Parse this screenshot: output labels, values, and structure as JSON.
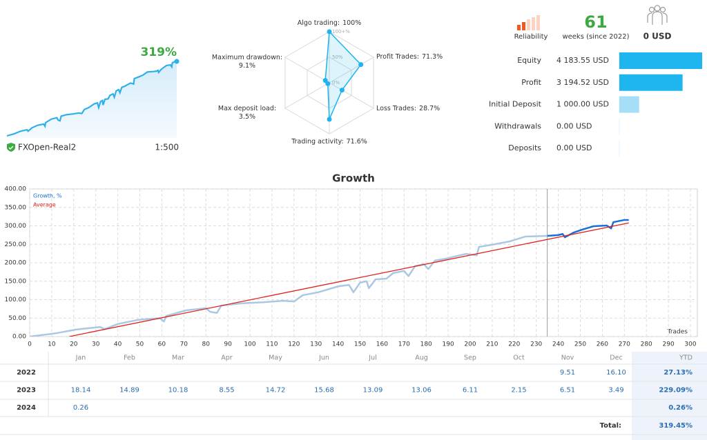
{
  "account": {
    "growth_label": "319%",
    "name": "FXOpen-Real2",
    "leverage": "1:500",
    "reliability_label": "Reliability",
    "weeks": "61",
    "weeks_label": "weeks (since 2022)",
    "subscribers_funds": "0 USD"
  },
  "chart_data": [
    {
      "type": "line",
      "title": "Growth",
      "x_label": "Trades",
      "xlim": [
        0,
        300
      ],
      "xticks": [
        0,
        10,
        20,
        30,
        40,
        50,
        60,
        70,
        80,
        90,
        100,
        110,
        120,
        130,
        140,
        150,
        160,
        170,
        180,
        190,
        200,
        210,
        220,
        230,
        240,
        250,
        260,
        270,
        280,
        290,
        300
      ],
      "ylim": [
        0,
        400
      ],
      "yticks": [
        {
          "value": 0,
          "label": "0.00"
        },
        {
          "value": 50,
          "label": "50.00"
        },
        {
          "value": 100,
          "label": "100.00"
        },
        {
          "value": 150,
          "label": "150.00"
        },
        {
          "value": 200,
          "label": "200.00"
        },
        {
          "value": 250,
          "label": "250.00"
        },
        {
          "value": 300,
          "label": "300.00"
        },
        {
          "value": 350,
          "label": "350.00"
        },
        {
          "value": 400,
          "label": "400.00"
        }
      ],
      "grid": true,
      "legend": "top-left",
      "split_x": 235,
      "series": [
        {
          "name": "Growth, %",
          "color": "#aac7e4",
          "recent_color": "#1a6fd6",
          "x": [
            0,
            12,
            21,
            32,
            34,
            40,
            49,
            59,
            61,
            62,
            71,
            80,
            82,
            85,
            87,
            96,
            106,
            115,
            120,
            124,
            131,
            140,
            145,
            147,
            150,
            153,
            154,
            157,
            162,
            165,
            170,
            172,
            175,
            179,
            181,
            184,
            189,
            193,
            198,
            203,
            204,
            211,
            218,
            225,
            235,
            240,
            242,
            243,
            247,
            251,
            256,
            262,
            264,
            265,
            270,
            272
          ],
          "values": [
            0,
            9,
            19,
            26,
            20,
            34,
            45,
            50,
            41,
            56,
            71,
            77,
            67,
            64,
            84,
            90,
            93,
            97,
            95,
            112,
            120,
            136,
            140,
            120,
            146,
            150,
            131,
            155,
            157,
            172,
            178,
            164,
            191,
            196,
            183,
            206,
            211,
            217,
            224,
            220,
            243,
            250,
            258,
            271,
            273,
            275,
            278,
            269,
            282,
            290,
            299,
            301,
            293,
            310,
            316,
            316
          ]
        },
        {
          "name": "Average",
          "color": "#e0201b",
          "x": [
            18,
            272
          ],
          "values": [
            0,
            308
          ]
        }
      ]
    },
    {
      "type": "radar",
      "color": "#1fb3ee",
      "rlim": [
        0,
        100
      ],
      "rticks": [
        {
          "value": 0,
          "label": "0%"
        },
        {
          "value": 50,
          "label": "50%"
        },
        {
          "value": 100,
          "label": "100+%"
        }
      ],
      "axes": [
        {
          "name": "Algo trading:",
          "value": 100,
          "value_label": "100%"
        },
        {
          "name": "Profit Trades:",
          "value": 71.3,
          "value_label": "71.3%"
        },
        {
          "name": "Loss Trades:",
          "value": 28.7,
          "value_label": "28.7%"
        },
        {
          "name": "Trading activity:",
          "value": 71.6,
          "value_label": "71.6%"
        },
        {
          "name": "Max deposit load:",
          "value": 3.5,
          "value_label": "3.5%"
        },
        {
          "name": "Maximum drawdown:",
          "value": 9.1,
          "value_label": "9.1%"
        }
      ]
    },
    {
      "type": "hbar",
      "categories": [
        "Equity",
        "Profit",
        "Initial Deposit",
        "Withdrawals",
        "Deposits"
      ],
      "values": [
        4183.55,
        3194.52,
        1000,
        0,
        0
      ],
      "value_labels": [
        "4 183.55 USD",
        "3 194.52 USD",
        "1 000.00 USD",
        "0.00 USD",
        "0.00 USD"
      ],
      "colors": [
        "#1fb5ee",
        "#1fb5ee",
        "#a6def7",
        "#cdebfa",
        "#cdebfa"
      ]
    }
  ],
  "table": {
    "columns": [
      "Jan",
      "Feb",
      "Mar",
      "Apr",
      "May",
      "Jun",
      "Jul",
      "Aug",
      "Sep",
      "Oct",
      "Nov",
      "Dec",
      "YTD"
    ],
    "rows": [
      {
        "label": "2022",
        "cells": [
          null,
          null,
          null,
          null,
          null,
          null,
          null,
          null,
          null,
          null,
          "9.51",
          "16.10",
          "27.13%"
        ]
      },
      {
        "label": "2023",
        "cells": [
          "18.14",
          "14.89",
          "10.18",
          "8.55",
          "14.72",
          "15.68",
          "13.09",
          "13.06",
          "6.11",
          "2.15",
          "6.51",
          "3.49",
          "229.09%"
        ]
      },
      {
        "label": "2024",
        "cells": [
          "0.26",
          null,
          null,
          null,
          null,
          null,
          null,
          null,
          null,
          null,
          null,
          null,
          "0.26%"
        ]
      }
    ],
    "total_label": "Total:",
    "total": "319.45%"
  }
}
